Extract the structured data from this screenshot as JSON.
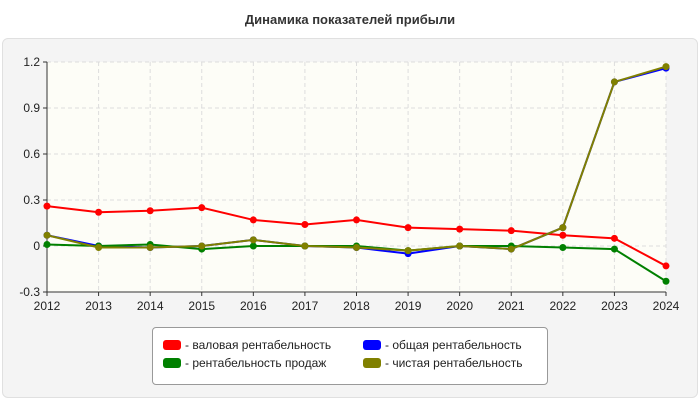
{
  "chart_data": {
    "type": "line",
    "title": "Динамика показателей прибыли",
    "categories": [
      "2012",
      "2013",
      "2014",
      "2015",
      "2016",
      "2017",
      "2018",
      "2019",
      "2020",
      "2021",
      "2022",
      "2023",
      "2024"
    ],
    "ylim": [
      -0.3,
      1.2
    ],
    "yticks": [
      "-0.3",
      "0",
      "0.3",
      "0.6",
      "0.9",
      "1.2"
    ],
    "grid": true,
    "legend_position": "bottom",
    "series": [
      {
        "name": "- валовая рентабельность",
        "color": "#ff0000",
        "values": [
          0.26,
          0.22,
          0.23,
          0.25,
          0.17,
          0.14,
          0.17,
          0.12,
          0.11,
          0.1,
          0.07,
          0.05,
          -0.13
        ]
      },
      {
        "name": "- общая рентабельность",
        "color": "#0000ff",
        "values": [
          0.07,
          0.0,
          -0.01,
          0.0,
          0.04,
          0.0,
          -0.01,
          -0.05,
          0.0,
          -0.02,
          0.12,
          1.07,
          1.16
        ]
      },
      {
        "name": "- рентабельность продаж",
        "color": "#008000",
        "values": [
          0.01,
          0.0,
          0.01,
          -0.02,
          0.0,
          0.0,
          0.0,
          -0.03,
          0.0,
          0.0,
          -0.01,
          -0.02,
          -0.23
        ]
      },
      {
        "name": "- чистая рентабельность",
        "color": "#808000",
        "values": [
          0.07,
          -0.01,
          -0.01,
          0.0,
          0.04,
          0.0,
          -0.01,
          -0.03,
          0.0,
          -0.02,
          0.12,
          1.07,
          1.17
        ]
      }
    ]
  }
}
